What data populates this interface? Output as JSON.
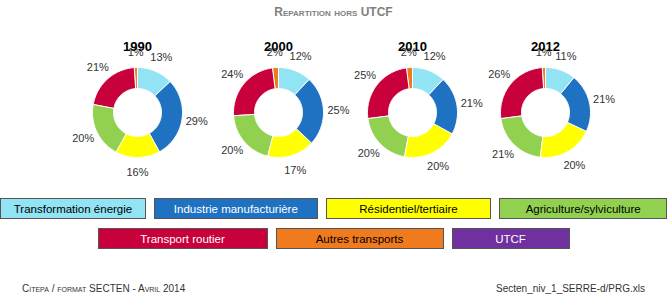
{
  "chart_data": {
    "type": "pie",
    "title": "Repartition hors UTCF",
    "categories": [
      "Transformation énergie",
      "Industrie manufacturière",
      "Résidentiel/tertiaire",
      "Agriculture/sylviculture",
      "Transport routier",
      "Autres transports",
      "UTCF"
    ],
    "colors": [
      "#92e3f3",
      "#1f72c2",
      "#ffff00",
      "#92d050",
      "#c8003c",
      "#f07a1e",
      "#7030a0"
    ],
    "series": [
      {
        "name": "1990",
        "values": [
          13,
          29,
          16,
          20,
          21,
          1,
          null
        ],
        "value_labels": [
          "13%",
          "29%",
          "16%",
          "20%",
          "21%",
          "1%",
          null
        ]
      },
      {
        "name": "2000",
        "values": [
          12,
          25,
          17,
          20,
          24,
          2,
          null
        ],
        "value_labels": [
          "12%",
          "25%",
          "17%",
          "20%",
          "24%",
          "2%",
          null
        ]
      },
      {
        "name": "2010",
        "values": [
          12,
          21,
          20,
          20,
          25,
          2,
          null
        ],
        "value_labels": [
          "12%",
          "21%",
          "20%",
          "20%",
          "25%",
          "2%",
          null
        ]
      },
      {
        "name": "2012",
        "values": [
          11,
          21,
          20,
          21,
          26,
          1,
          null
        ],
        "value_labels": [
          "11%",
          "21%",
          "20%",
          "21%",
          "26%",
          "1%",
          null
        ]
      }
    ],
    "data_labels": true,
    "legend": "bottom",
    "annotations": [
      "Citepa / format SECTEN - Avril 2014",
      "Secten_niv_1_SERRE-d/PRG.xls"
    ]
  }
}
